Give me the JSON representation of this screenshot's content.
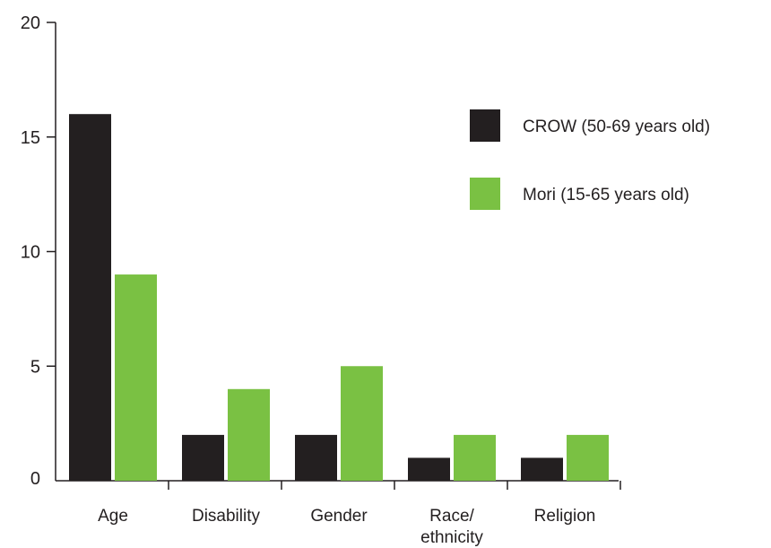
{
  "colors": {
    "CROW (50-69 years old)": "#231f20",
    "Mori (15-65 years old)": "#7ac143",
    "axis": "#231f20"
  },
  "chart_data": {
    "type": "bar",
    "title": "",
    "xlabel": "",
    "ylabel": "",
    "ylim": [
      0,
      20
    ],
    "yticks": [
      "0",
      "5",
      "10",
      "15",
      "20"
    ],
    "categories": [
      {
        "id": "age",
        "lines": [
          "Age"
        ]
      },
      {
        "id": "disability",
        "lines": [
          "Disability"
        ]
      },
      {
        "id": "gender",
        "lines": [
          "Gender"
        ]
      },
      {
        "id": "race-ethnicity",
        "lines": [
          "Race/",
          "ethnicity"
        ]
      },
      {
        "id": "religion",
        "lines": [
          "Religion"
        ]
      }
    ],
    "series": [
      {
        "name": "CROW (50-69 years old)",
        "values": [
          16,
          2,
          2,
          1,
          1
        ]
      },
      {
        "name": "Mori (15-65 years old)",
        "values": [
          9,
          4,
          5,
          2,
          2
        ]
      }
    ],
    "grid": false,
    "legend": "right"
  }
}
